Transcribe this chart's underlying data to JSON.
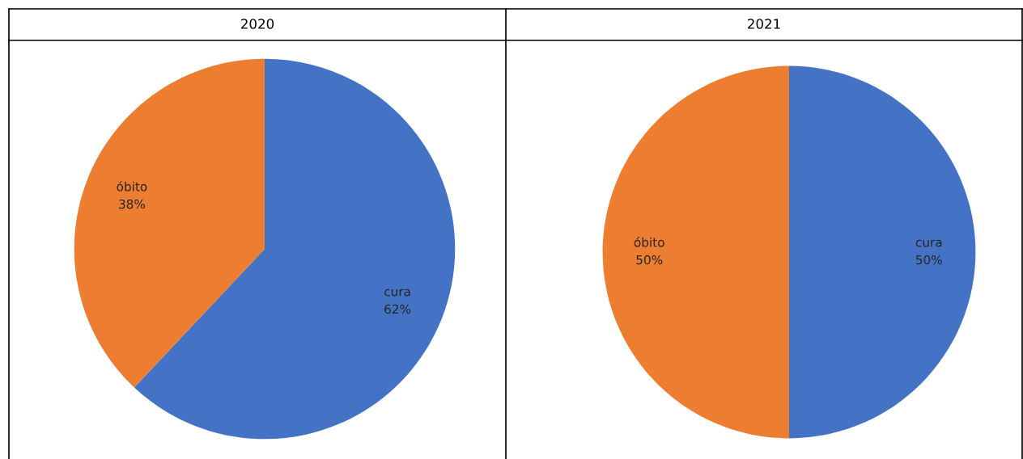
{
  "chart_data": [
    {
      "type": "pie",
      "title": "2020",
      "categories": [
        "cura",
        "óbito"
      ],
      "values": [
        62,
        38
      ],
      "colors": [
        "#4472c4",
        "#ed7d31"
      ],
      "value_labels": [
        "62%",
        "38%"
      ]
    },
    {
      "type": "pie",
      "title": "2021",
      "categories": [
        "cura",
        "óbito"
      ],
      "values": [
        50,
        50
      ],
      "colors": [
        "#4472c4",
        "#ed7d31"
      ],
      "value_labels": [
        "50%",
        "50%"
      ]
    }
  ]
}
